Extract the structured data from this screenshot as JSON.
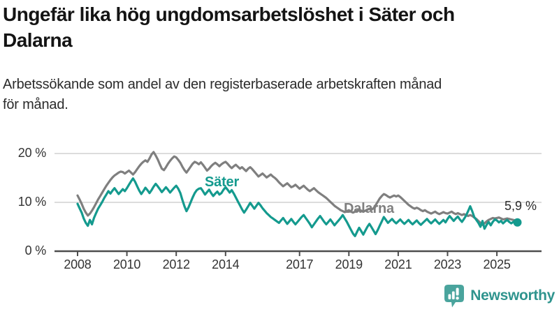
{
  "header": {
    "title_line1": "Ungefär lika hög ungdomsarbetslöshet i Säter och",
    "title_line2": "Dalarna",
    "subtitle_line1": "Arbetssökande som andel av den registerbaserade arbetskraften månad",
    "subtitle_line2": "för månad."
  },
  "chart_data": {
    "type": "line",
    "unit": "%",
    "frequency": "monthly",
    "start_month": "2008-01",
    "end_month": "2025-11",
    "x_range": [
      2008,
      2026
    ],
    "ylim": [
      0,
      21
    ],
    "grid": "horizontal",
    "legend_position": "inline-labels",
    "colors": {
      "saeter_line": "#149a8e",
      "dalarna_line": "#7f7f7f",
      "grid": "#dcdcdc",
      "axis": "#4d4d4d",
      "tick_text": "#333333"
    },
    "y_ticks": [
      {
        "label": "20 %",
        "value": 20
      },
      {
        "label": "10 %",
        "value": 10
      },
      {
        "label": "0 %",
        "value": 0
      }
    ],
    "x_ticks": [
      {
        "label": "2008",
        "value": 2008
      },
      {
        "label": "2010",
        "value": 2010
      },
      {
        "label": "2012",
        "value": 2012
      },
      {
        "label": "2014",
        "value": 2014
      },
      {
        "label": "2017",
        "value": 2017
      },
      {
        "label": "2019",
        "value": 2019
      },
      {
        "label": "2021",
        "value": 2021
      },
      {
        "label": "2023",
        "value": 2023
      },
      {
        "label": "2025",
        "value": 2025
      }
    ],
    "series": [
      {
        "name": "Dalarna",
        "color": "#7f7f7f",
        "values": [
          11.4,
          10.6,
          9.7,
          8.7,
          7.9,
          7.3,
          7.7,
          8.3,
          9.0,
          9.8,
          10.6,
          11.3,
          12.0,
          12.7,
          13.4,
          14.0,
          14.6,
          15.1,
          15.5,
          15.8,
          16.1,
          16.3,
          16.2,
          15.9,
          16.2,
          16.5,
          16.1,
          15.7,
          16.2,
          16.8,
          17.4,
          17.9,
          18.3,
          18.6,
          18.3,
          19.0,
          19.8,
          20.3,
          19.6,
          18.8,
          17.8,
          16.9,
          16.6,
          17.2,
          17.9,
          18.5,
          19.0,
          19.4,
          19.2,
          18.7,
          18.1,
          17.3,
          16.6,
          16.1,
          16.7,
          17.3,
          17.9,
          18.3,
          18.1,
          17.8,
          18.2,
          17.7,
          17.1,
          16.5,
          16.9,
          17.4,
          17.8,
          18.1,
          17.8,
          17.4,
          17.8,
          18.1,
          18.3,
          17.9,
          17.4,
          17.0,
          17.4,
          17.7,
          17.3,
          16.9,
          17.2,
          16.8,
          16.4,
          16.9,
          17.2,
          16.8,
          16.3,
          15.8,
          15.3,
          15.6,
          15.9,
          15.5,
          15.1,
          15.4,
          15.7,
          15.3,
          15.0,
          14.6,
          14.1,
          13.7,
          13.3,
          13.6,
          13.9,
          13.5,
          13.1,
          13.3,
          13.6,
          13.2,
          12.8,
          13.1,
          13.4,
          13.0,
          12.6,
          12.3,
          12.6,
          12.9,
          12.5,
          12.1,
          11.8,
          11.5,
          11.2,
          10.9,
          10.5,
          10.1,
          9.7,
          9.3,
          9.0,
          8.7,
          8.4,
          8.2,
          8.0,
          8.2,
          8.4,
          8.1,
          7.9,
          8.1,
          8.3,
          8.5,
          8.3,
          8.1,
          8.3,
          8.5,
          8.7,
          8.5,
          8.8,
          9.4,
          10.1,
          10.8,
          11.3,
          11.7,
          11.5,
          11.2,
          11.0,
          11.2,
          11.4,
          11.2,
          11.4,
          11.1,
          10.7,
          10.3,
          9.9,
          9.5,
          9.2,
          8.9,
          8.7,
          8.9,
          8.7,
          8.4,
          8.2,
          8.4,
          8.1,
          7.9,
          7.7,
          7.9,
          8.1,
          7.8,
          7.6,
          7.8,
          8.0,
          7.8,
          7.7,
          7.9,
          8.1,
          7.8,
          7.6,
          7.8,
          7.6,
          7.4,
          7.6,
          7.4,
          7.2,
          7.4,
          7.2,
          6.9,
          6.6,
          6.2,
          5.8,
          5.4,
          5.7,
          6.1,
          6.4,
          6.6,
          6.8,
          6.7,
          6.8,
          6.9,
          6.7,
          6.5,
          6.6,
          6.7,
          6.6,
          6.5,
          6.4,
          6.3,
          6.2
        ]
      },
      {
        "name": "Säter",
        "color": "#149a8e",
        "values": [
          9.7,
          8.8,
          7.9,
          6.7,
          5.8,
          5.2,
          6.4,
          5.5,
          6.8,
          7.8,
          8.7,
          9.4,
          10.1,
          10.9,
          11.6,
          12.3,
          11.8,
          12.4,
          12.9,
          12.3,
          11.7,
          12.2,
          12.7,
          12.3,
          12.9,
          13.6,
          14.3,
          14.9,
          14.2,
          13.3,
          12.4,
          11.7,
          12.3,
          13.0,
          12.5,
          11.9,
          12.5,
          13.2,
          13.8,
          13.3,
          12.7,
          12.1,
          12.6,
          13.1,
          12.6,
          12.0,
          12.5,
          13.0,
          13.4,
          12.8,
          11.9,
          10.5,
          9.2,
          8.2,
          9.0,
          10.0,
          11.0,
          11.9,
          12.5,
          12.8,
          12.9,
          12.3,
          11.6,
          12.1,
          12.6,
          11.9,
          11.3,
          11.8,
          12.2,
          11.6,
          11.9,
          12.6,
          13.1,
          12.6,
          12.0,
          12.5,
          11.8,
          11.0,
          10.2,
          9.4,
          8.6,
          7.9,
          8.5,
          9.2,
          9.9,
          9.3,
          8.7,
          9.3,
          9.9,
          9.4,
          8.8,
          8.3,
          7.8,
          7.4,
          7.0,
          6.7,
          6.4,
          6.1,
          5.8,
          6.3,
          6.8,
          6.2,
          5.6,
          6.1,
          6.6,
          6.0,
          5.5,
          6.0,
          6.5,
          7.0,
          7.4,
          6.8,
          6.2,
          5.6,
          4.9,
          5.5,
          6.1,
          6.7,
          7.2,
          6.6,
          6.0,
          5.5,
          6.0,
          6.5,
          5.9,
          5.3,
          5.8,
          6.3,
          6.8,
          7.4,
          6.7,
          6.0,
          5.2,
          4.4,
          3.6,
          3.1,
          4.0,
          4.8,
          4.1,
          3.4,
          4.2,
          5.0,
          5.6,
          4.9,
          4.2,
          3.5,
          4.3,
          5.2,
          6.1,
          7.0,
          6.4,
          5.8,
          6.2,
          6.6,
          6.1,
          5.7,
          6.1,
          6.5,
          6.0,
          5.6,
          6.0,
          6.4,
          5.9,
          5.5,
          5.9,
          6.3,
          5.8,
          5.4,
          5.8,
          6.2,
          6.6,
          6.1,
          5.7,
          6.1,
          6.5,
          6.0,
          5.6,
          6.0,
          6.4,
          5.9,
          6.6,
          7.2,
          6.7,
          6.2,
          6.7,
          7.1,
          6.5,
          6.0,
          6.6,
          7.3,
          8.2,
          9.2,
          8.2,
          7.0,
          6.4,
          5.8,
          5.0,
          6.2,
          4.6,
          5.4,
          6.0,
          5.3,
          6.0,
          6.5,
          6.3,
          5.9,
          6.2,
          5.7,
          6.1,
          6.4,
          6.0,
          5.7,
          6.0,
          6.2,
          5.9
        ]
      }
    ],
    "end_annotation": {
      "series": "Säter",
      "label": "5,9 %",
      "value": 5.9
    }
  },
  "footer": {
    "brand": "Newsworthy"
  }
}
